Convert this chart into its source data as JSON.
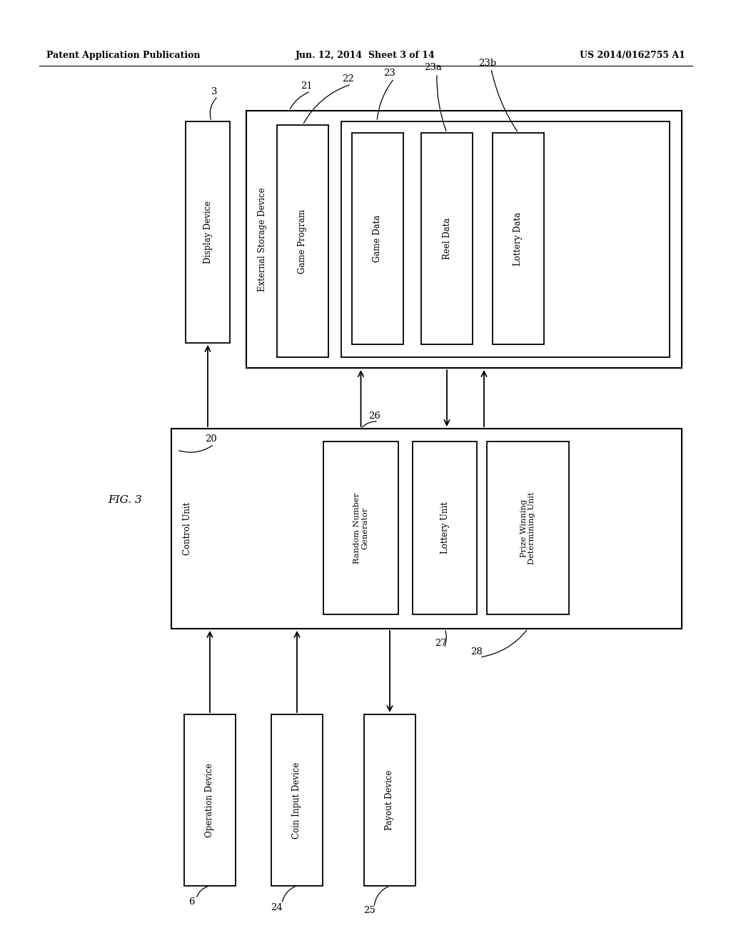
{
  "bg_color": "#ffffff",
  "header_left": "Patent Application Publication",
  "header_center": "Jun. 12, 2014  Sheet 3 of 14",
  "header_right": "US 2014/0162755 A1",
  "fig_label": "FIG. 3"
}
